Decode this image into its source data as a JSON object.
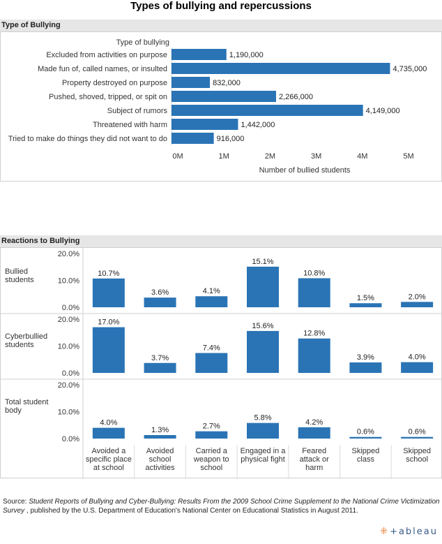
{
  "title": "Types of bullying and repercussions",
  "colors": {
    "bar": "#2a74b5",
    "header_bg": "#e6e6e6",
    "border": "#cfcfcf"
  },
  "sections": {
    "types_header": "Type of Bullying",
    "reactions_header": "Reactions to Bullying"
  },
  "chart_data": [
    {
      "type": "bar",
      "orientation": "horizontal",
      "title": "Type of Bullying",
      "category_header": "Type of bullying",
      "xlabel": "Number of bullied students",
      "xlim": [
        0,
        5500000
      ],
      "x_ticks": [
        0,
        1000000,
        2000000,
        3000000,
        4000000,
        5000000
      ],
      "x_tick_labels": [
        "0M",
        "1M",
        "2M",
        "3M",
        "4M",
        "5M"
      ],
      "categories": [
        "Excluded from activities on purpose",
        "Made fun of, called names, or insulted",
        "Property destroyed on purpose",
        "Pushed, shoved, tripped, or spit on",
        "Subject of rumors",
        "Threatened with harm",
        "Tried to make do things they did not want to do"
      ],
      "values": [
        1190000,
        4735000,
        832000,
        2266000,
        4149000,
        1442000,
        916000
      ],
      "value_labels": [
        "1,190,000",
        "4,735,000",
        "832,000",
        "2,266,000",
        "4,149,000",
        "1,442,000",
        "916,000"
      ]
    },
    {
      "type": "bar",
      "title": "Reactions to Bullying",
      "categories": [
        [
          "Avoided a",
          "specific place",
          "at school"
        ],
        [
          "Avoided",
          "school",
          "activities"
        ],
        [
          "Carried a",
          "weapon to",
          "school"
        ],
        [
          "Engaged in a",
          "physical fight"
        ],
        [
          "Feared",
          "attack or",
          "harm"
        ],
        [
          "Skipped",
          "class"
        ],
        [
          "Skipped",
          "school"
        ]
      ],
      "ylim": [
        0,
        20
      ],
      "y_tick_labels": [
        "0.0%",
        "10.0%",
        "20.0%"
      ],
      "series": [
        {
          "name": [
            "Bullied",
            "students"
          ],
          "values": [
            10.7,
            3.6,
            4.1,
            15.1,
            10.8,
            1.5,
            2.0
          ],
          "value_labels": [
            "10.7%",
            "3.6%",
            "4.1%",
            "15.1%",
            "10.8%",
            "1.5%",
            "2.0%"
          ]
        },
        {
          "name": [
            "Cyberbullied",
            "students"
          ],
          "values": [
            17.0,
            3.7,
            7.4,
            15.6,
            12.8,
            3.9,
            4.0
          ],
          "value_labels": [
            "17.0%",
            "3.7%",
            "7.4%",
            "15.6%",
            "12.8%",
            "3.9%",
            "4.0%"
          ]
        },
        {
          "name": [
            "Total student",
            "body"
          ],
          "values": [
            4.0,
            1.3,
            2.7,
            5.8,
            4.2,
            0.6,
            0.6
          ],
          "value_labels": [
            "4.0%",
            "1.3%",
            "2.7%",
            "5.8%",
            "4.2%",
            "0.6%",
            "0.6%"
          ]
        }
      ]
    }
  ],
  "source": {
    "prefix": "Source: ",
    "title_italic": "Student Reports of Bullying and Cyber-Bullying: Results From the 2009 School Crime Supplement to the National Crime Victimization Survey",
    "suffix": " , published by the U.S. Department of Education's National Center on Educational Statistics in August 2011."
  },
  "logo": {
    "text": "+ableau",
    "mark": "⁜"
  }
}
